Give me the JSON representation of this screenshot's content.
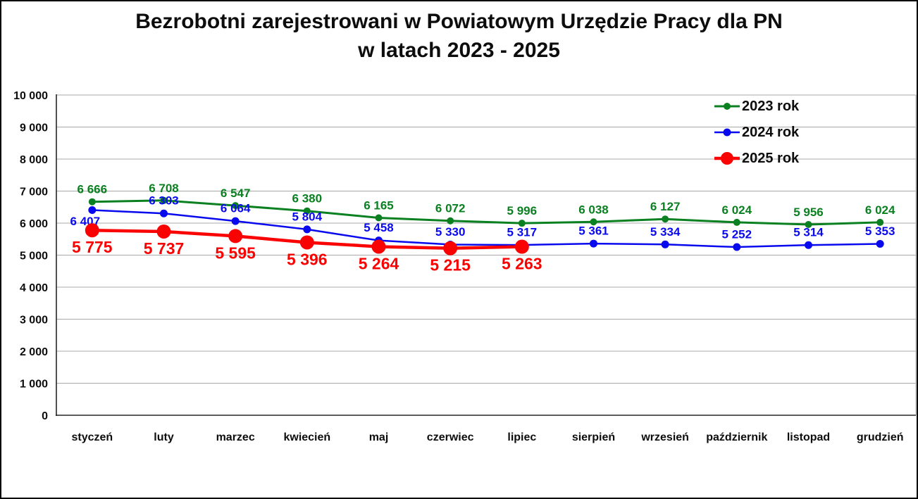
{
  "title": {
    "line1": "Bezrobotni zarejestrowani w Powiatowym Urzędzie Pracy dla PN",
    "line2": "w latach 2023 - 2025"
  },
  "chart_data": {
    "type": "line",
    "title": "Bezrobotni zarejestrowani w Powiatowym Urzędzie Pracy dla PN w latach 2023 - 2025",
    "categories": [
      "styczeń",
      "luty",
      "marzec",
      "kwiecień",
      "maj",
      "czerwiec",
      "lipiec",
      "sierpień",
      "wrzesień",
      "październik",
      "listopad",
      "grudzień"
    ],
    "series": [
      {
        "name": "2023 rok",
        "color": "#0a8020",
        "values": [
          6666,
          6708,
          6547,
          6380,
          6165,
          6072,
          5996,
          6038,
          6127,
          6024,
          5956,
          6024
        ],
        "line_width": 3,
        "marker_radius": 5,
        "label_position": "above",
        "label_font_size": 17,
        "label_overrides": {}
      },
      {
        "name": "2024 rok",
        "color": "#0909ee",
        "values": [
          6407,
          6303,
          6064,
          5804,
          5458,
          5330,
          5317,
          5361,
          5334,
          5252,
          5314,
          5353
        ],
        "line_width": 2.5,
        "marker_radius": 5.5,
        "label_position": "above",
        "label_font_size": 17,
        "label_overrides": {
          "0": "below"
        }
      },
      {
        "name": "2025 rok",
        "color": "#fa0202",
        "values": [
          5775,
          5737,
          5595,
          5396,
          5264,
          5215,
          5263
        ],
        "line_width": 4.5,
        "marker_radius": 10,
        "label_position": "below",
        "label_font_size": 23,
        "label_overrides": {}
      }
    ],
    "xlabel": "",
    "ylabel": "",
    "ylim": [
      0,
      10000
    ],
    "y_tick_step": 1000,
    "y_tick_labels": [
      "0",
      "1 000",
      "2 000",
      "3 000",
      "4 000",
      "5 000",
      "6 000",
      "7 000",
      "8 000",
      "9 000",
      "10 000"
    ],
    "grid": true,
    "gridline_color": "#a8a8a8",
    "axis_color": "#262626",
    "text_color": "#0d0d0d",
    "legend_position": "top-right",
    "data_labels": true,
    "thousand_separator": " "
  }
}
